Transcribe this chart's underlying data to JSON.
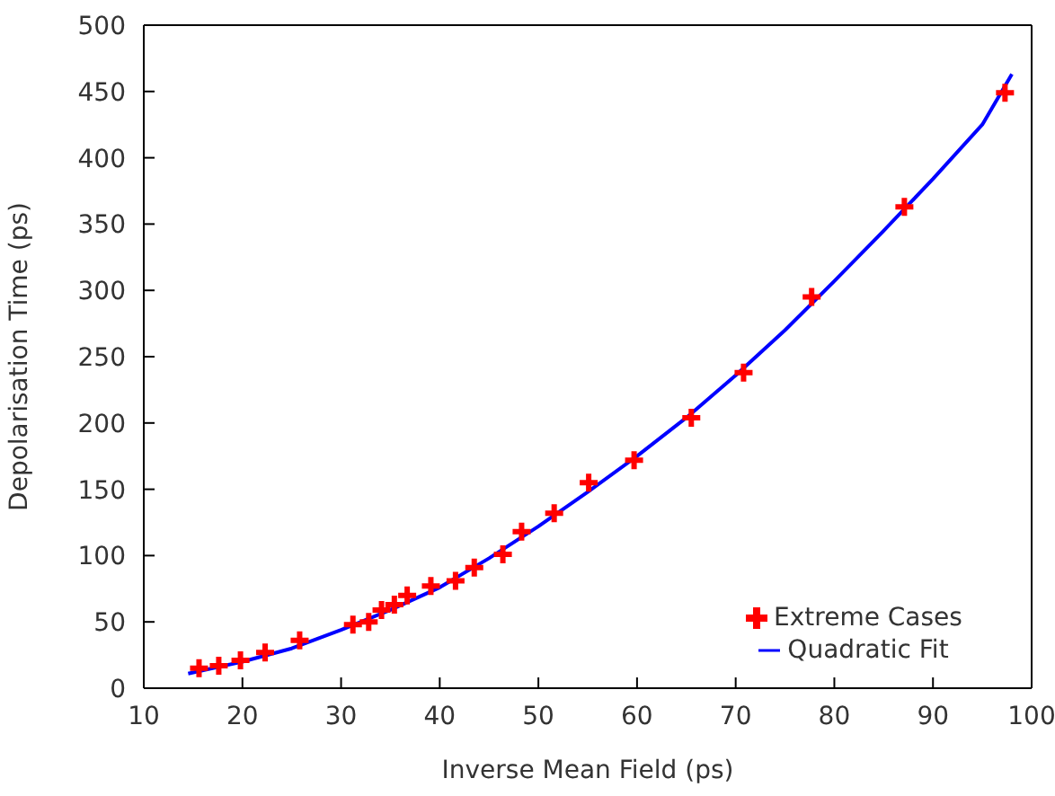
{
  "chart_data": {
    "type": "scatter",
    "xlabel": "Inverse Mean Field (ps)",
    "ylabel": "Depolarisation Time (ps)",
    "xlim": [
      10,
      100
    ],
    "xticks": [
      10,
      20,
      30,
      40,
      50,
      60,
      70,
      80,
      90,
      100
    ],
    "ylim": [
      0,
      500
    ],
    "yticks": [
      0,
      50,
      100,
      150,
      200,
      250,
      300,
      350,
      400,
      450,
      500
    ],
    "grid": false,
    "legend": "bottom right",
    "series": [
      {
        "name": "Extreme Cases",
        "marker": "cross",
        "color": "#ff0000",
        "x": [
          15.6,
          17.6,
          19.8,
          22.3,
          25.8,
          31.2,
          32.8,
          34.1,
          35.4,
          36.7,
          39.1,
          41.6,
          43.5,
          46.4,
          48.3,
          51.6,
          55.1,
          59.7,
          65.5,
          70.8,
          77.7,
          87.1,
          97.3
        ],
        "values": [
          15,
          17,
          21,
          27,
          36,
          48,
          50,
          59,
          63,
          70,
          77,
          81,
          91,
          101,
          118,
          132,
          155,
          172,
          204,
          238,
          295,
          363,
          449
        ]
      },
      {
        "name": "Quadratic Fit",
        "type": "line",
        "line_style": "solid",
        "color": "#0000ff",
        "x": [
          14.5,
          20,
          25,
          30,
          35,
          40,
          45,
          50,
          55,
          60,
          65,
          70,
          75,
          80,
          85,
          90,
          95,
          98
        ],
        "values": [
          11,
          20,
          30,
          44,
          59,
          76,
          98,
          122,
          148,
          175,
          204,
          236,
          270,
          307,
          345,
          384,
          425,
          463
        ]
      }
    ]
  }
}
